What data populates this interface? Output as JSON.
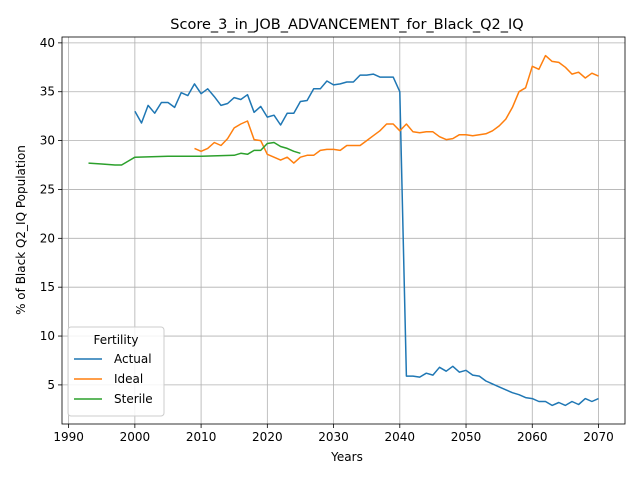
{
  "chart_data": {
    "type": "line",
    "title": "Score_3_in_JOB_ADVANCEMENT_for_Black_Q2_IQ",
    "xlabel": "Years",
    "ylabel": "% of Black Q2_IQ Population",
    "xlim": [
      1989,
      2074
    ],
    "ylim": [
      1.0,
      40.6
    ],
    "xticks": [
      1990,
      2000,
      2010,
      2020,
      2030,
      2040,
      2050,
      2060,
      2070
    ],
    "yticks": [
      5,
      10,
      15,
      20,
      25,
      30,
      35,
      40
    ],
    "grid": true,
    "legend": {
      "title": "Fertility",
      "placement": "lower-left"
    },
    "series": [
      {
        "name": "Actual",
        "color": "#1f77b4",
        "x": [
          2000,
          2001,
          2002,
          2003,
          2004,
          2005,
          2006,
          2007,
          2008,
          2009,
          2010,
          2011,
          2012,
          2013,
          2014,
          2015,
          2016,
          2017,
          2018,
          2019,
          2020,
          2021,
          2022,
          2023,
          2024,
          2025,
          2026,
          2027,
          2028,
          2029,
          2030,
          2031,
          2032,
          2033,
          2034,
          2035,
          2036,
          2037,
          2038,
          2039,
          2040,
          2041,
          2042,
          2043,
          2044,
          2045,
          2046,
          2047,
          2048,
          2049,
          2050,
          2051,
          2052,
          2053,
          2054,
          2055,
          2056,
          2057,
          2058,
          2059,
          2060,
          2061,
          2062,
          2063,
          2064,
          2065,
          2066,
          2067,
          2068,
          2069,
          2070
        ],
        "values": [
          33.0,
          31.8,
          33.6,
          32.8,
          33.9,
          33.9,
          33.4,
          34.9,
          34.6,
          35.8,
          34.8,
          35.3,
          34.5,
          33.6,
          33.8,
          34.4,
          34.2,
          34.7,
          32.9,
          33.5,
          32.4,
          32.6,
          31.6,
          32.8,
          32.8,
          34.0,
          34.1,
          35.3,
          35.3,
          36.1,
          35.7,
          35.8,
          36.0,
          36.0,
          36.7,
          36.7,
          36.8,
          36.5,
          36.5,
          36.5,
          35.0,
          5.9,
          5.9,
          5.8,
          6.2,
          6.0,
          6.8,
          6.4,
          6.9,
          6.3,
          6.5,
          6.0,
          5.9,
          5.4,
          5.1,
          4.8,
          4.5,
          4.2,
          4.0,
          3.7,
          3.6,
          3.3,
          3.3,
          2.9,
          3.2,
          2.9,
          3.3,
          3.0,
          3.6,
          3.3,
          3.6
        ]
      },
      {
        "name": "Ideal",
        "color": "#ff7f0e",
        "x": [
          2009,
          2010,
          2011,
          2012,
          2013,
          2014,
          2015,
          2016,
          2017,
          2018,
          2019,
          2020,
          2021,
          2022,
          2023,
          2024,
          2025,
          2026,
          2027,
          2028,
          2029,
          2030,
          2031,
          2032,
          2033,
          2034,
          2035,
          2036,
          2037,
          2038,
          2039,
          2040,
          2041,
          2042,
          2043,
          2044,
          2045,
          2046,
          2047,
          2048,
          2049,
          2050,
          2051,
          2052,
          2053,
          2054,
          2055,
          2056,
          2057,
          2058,
          2059,
          2060,
          2061,
          2062,
          2063,
          2064,
          2065,
          2066,
          2067,
          2068,
          2069,
          2070
        ],
        "values": [
          29.2,
          28.9,
          29.2,
          29.8,
          29.5,
          30.2,
          31.3,
          31.7,
          32.0,
          30.1,
          30.0,
          28.6,
          28.3,
          28.0,
          28.3,
          27.7,
          28.3,
          28.5,
          28.5,
          29.0,
          29.1,
          29.1,
          29.0,
          29.5,
          29.5,
          29.5,
          30.0,
          30.5,
          31.0,
          31.7,
          31.7,
          31.0,
          31.7,
          30.9,
          30.8,
          30.9,
          30.9,
          30.4,
          30.1,
          30.2,
          30.6,
          30.6,
          30.5,
          30.6,
          30.7,
          31.0,
          31.5,
          32.2,
          33.4,
          35.0,
          35.4,
          37.6,
          37.3,
          38.7,
          38.1,
          38.0,
          37.5,
          36.8,
          37.0,
          36.4,
          36.9,
          36.6
        ]
      },
      {
        "name": "Sterile",
        "color": "#2ca02c",
        "x": [
          1993,
          1995,
          1997,
          1998,
          1999,
          2000,
          2005,
          2010,
          2015,
          2016,
          2017,
          2018,
          2019,
          2020,
          2021,
          2022,
          2023,
          2024,
          2025
        ],
        "values": [
          27.7,
          27.6,
          27.5,
          27.5,
          27.9,
          28.3,
          28.4,
          28.4,
          28.5,
          28.7,
          28.6,
          29.0,
          29.0,
          29.7,
          29.8,
          29.4,
          29.2,
          28.9,
          28.7
        ]
      }
    ]
  }
}
